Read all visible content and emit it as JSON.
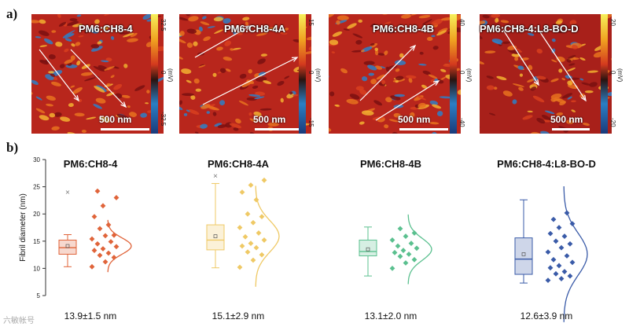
{
  "figure": {
    "panel_a_label": "a)",
    "panel_b_label": "b)",
    "watermark": "六敏帐号"
  },
  "afm_panels": [
    {
      "title": "PM6:CH8-4",
      "scale_label": "500 nm",
      "cbar_ticks": [
        "32.5",
        "0",
        "-32.5"
      ],
      "cbar_unit": "(mV)"
    },
    {
      "title": "PM6:CH8-4A",
      "scale_label": "500 nm",
      "cbar_ticks": [
        "15",
        "0",
        "-15"
      ],
      "cbar_unit": "(mV)"
    },
    {
      "title": "PM6:CH8-4B",
      "scale_label": "500 nm",
      "cbar_ticks": [
        "40",
        "0",
        "-40"
      ],
      "cbar_unit": "(mV)"
    },
    {
      "title": "PM6:CH8-4:L8-BO-D",
      "scale_label": "500 nm",
      "cbar_ticks": [
        "20",
        "0",
        "-20"
      ],
      "cbar_unit": "(mV)"
    }
  ],
  "chart_data": {
    "type": "box_scatter_distribution",
    "ylabel": "Fibril diameter (nm)",
    "ylim": [
      5,
      30
    ],
    "yticks": [
      5,
      10,
      15,
      20,
      25,
      30
    ],
    "series": [
      {
        "name": "PM6:CH8-4",
        "summary": "13.9±1.5 nm",
        "color": "#e0643a",
        "box": {
          "min": 10.3,
          "q1": 12.6,
          "median": 13.8,
          "q3": 15.2,
          "max": 16.2,
          "mean": 14.1,
          "outlier": 24.0
        },
        "points": [
          10.3,
          11.2,
          12.0,
          12.4,
          12.8,
          13.3,
          13.6,
          14.0,
          14.5,
          14.9,
          15.4,
          16.0,
          16.1,
          17.3,
          18.0,
          19.5,
          21.5,
          23.0,
          24.2
        ]
      },
      {
        "name": "PM6:CH8-4A",
        "summary": "15.1±2.9 nm",
        "color": "#efc965",
        "box": {
          "min": 10.1,
          "q1": 13.4,
          "median": 15.2,
          "q3": 18.0,
          "max": 25.6,
          "mean": 15.9,
          "outlier": 27.0
        },
        "points": [
          10.2,
          11.5,
          12.5,
          13.0,
          13.8,
          14.1,
          14.6,
          15.2,
          15.8,
          16.5,
          17.5,
          18.4,
          19.5,
          20.0,
          22.6,
          24.0,
          25.3,
          26.2
        ]
      },
      {
        "name": "PM6:CH8-4B",
        "summary": "13.1±2.0 nm",
        "color": "#5bc08f",
        "box": {
          "min": 8.6,
          "q1": 12.3,
          "median": 13.1,
          "q3": 15.2,
          "max": 17.6,
          "mean": 13.5
        },
        "points": [
          10.0,
          11.0,
          11.6,
          12.2,
          12.6,
          12.9,
          13.3,
          13.7,
          14.1,
          14.6,
          15.2,
          15.9,
          16.5,
          17.3
        ]
      },
      {
        "name": "PM6:CH8-4:L8-BO-D",
        "summary": "12.6±3.9 nm",
        "color": "#3a5ba8",
        "box": {
          "min": 7.3,
          "q1": 8.9,
          "median": 11.7,
          "q3": 15.6,
          "max": 22.6,
          "mean": 12.6
        },
        "points": [
          7.8,
          8.1,
          8.6,
          9.0,
          9.4,
          10.1,
          10.5,
          11.1,
          11.6,
          12.3,
          13.0,
          13.8,
          14.5,
          15.0,
          15.9,
          16.4,
          17.5,
          18.2,
          19.0,
          20.2
        ]
      }
    ]
  }
}
